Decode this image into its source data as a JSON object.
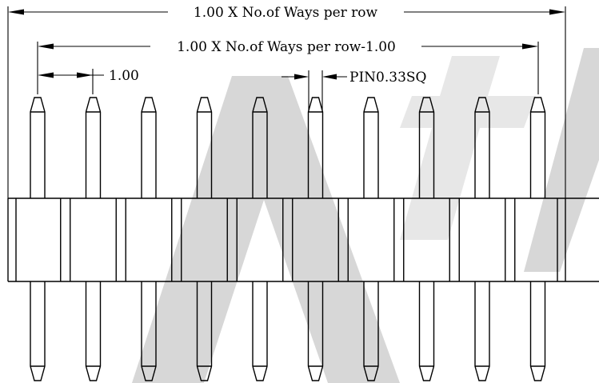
{
  "labels": {
    "overall_width": "1.00 X No.of Ways per row",
    "pitch_span": "1.00 X No.of Ways per row-1.00",
    "pitch": "1.00",
    "pin_size": "PIN0.33SQ"
  },
  "pin_count": 10,
  "colors": {
    "line": "#000000",
    "watermark": "#d7d7d7"
  }
}
